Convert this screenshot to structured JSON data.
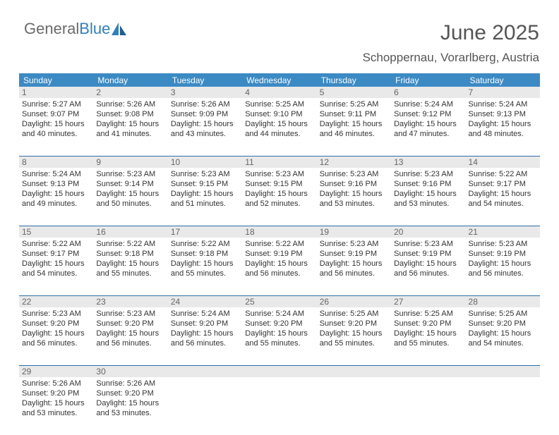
{
  "brand": {
    "first": "General",
    "second": "Blue"
  },
  "title": "June 2025",
  "location": "Schoppernau, Vorarlberg, Austria",
  "colors": {
    "header_bg": "#3b8ac4",
    "header_text": "#ffffff",
    "daynum_bg": "#e9e9e9",
    "daynum_text": "#666666",
    "row_border": "#2f6fa6",
    "body_text": "#333333",
    "title_text": "#555555",
    "logo_gray": "#6b6b6b",
    "logo_blue": "#2f7fbf"
  },
  "fonts": {
    "title_size": 30,
    "location_size": 17,
    "dayheader_size": 12,
    "daynum_size": 12,
    "info_size": 11
  },
  "day_headers": [
    "Sunday",
    "Monday",
    "Tuesday",
    "Wednesday",
    "Thursday",
    "Friday",
    "Saturday"
  ],
  "weeks": [
    [
      {
        "day": "1",
        "sunrise": "Sunrise: 5:27 AM",
        "sunset": "Sunset: 9:07 PM",
        "daylight1": "Daylight: 15 hours",
        "daylight2": "and 40 minutes."
      },
      {
        "day": "2",
        "sunrise": "Sunrise: 5:26 AM",
        "sunset": "Sunset: 9:08 PM",
        "daylight1": "Daylight: 15 hours",
        "daylight2": "and 41 minutes."
      },
      {
        "day": "3",
        "sunrise": "Sunrise: 5:26 AM",
        "sunset": "Sunset: 9:09 PM",
        "daylight1": "Daylight: 15 hours",
        "daylight2": "and 43 minutes."
      },
      {
        "day": "4",
        "sunrise": "Sunrise: 5:25 AM",
        "sunset": "Sunset: 9:10 PM",
        "daylight1": "Daylight: 15 hours",
        "daylight2": "and 44 minutes."
      },
      {
        "day": "5",
        "sunrise": "Sunrise: 5:25 AM",
        "sunset": "Sunset: 9:11 PM",
        "daylight1": "Daylight: 15 hours",
        "daylight2": "and 46 minutes."
      },
      {
        "day": "6",
        "sunrise": "Sunrise: 5:24 AM",
        "sunset": "Sunset: 9:12 PM",
        "daylight1": "Daylight: 15 hours",
        "daylight2": "and 47 minutes."
      },
      {
        "day": "7",
        "sunrise": "Sunrise: 5:24 AM",
        "sunset": "Sunset: 9:13 PM",
        "daylight1": "Daylight: 15 hours",
        "daylight2": "and 48 minutes."
      }
    ],
    [
      {
        "day": "8",
        "sunrise": "Sunrise: 5:24 AM",
        "sunset": "Sunset: 9:13 PM",
        "daylight1": "Daylight: 15 hours",
        "daylight2": "and 49 minutes."
      },
      {
        "day": "9",
        "sunrise": "Sunrise: 5:23 AM",
        "sunset": "Sunset: 9:14 PM",
        "daylight1": "Daylight: 15 hours",
        "daylight2": "and 50 minutes."
      },
      {
        "day": "10",
        "sunrise": "Sunrise: 5:23 AM",
        "sunset": "Sunset: 9:15 PM",
        "daylight1": "Daylight: 15 hours",
        "daylight2": "and 51 minutes."
      },
      {
        "day": "11",
        "sunrise": "Sunrise: 5:23 AM",
        "sunset": "Sunset: 9:15 PM",
        "daylight1": "Daylight: 15 hours",
        "daylight2": "and 52 minutes."
      },
      {
        "day": "12",
        "sunrise": "Sunrise: 5:23 AM",
        "sunset": "Sunset: 9:16 PM",
        "daylight1": "Daylight: 15 hours",
        "daylight2": "and 53 minutes."
      },
      {
        "day": "13",
        "sunrise": "Sunrise: 5:23 AM",
        "sunset": "Sunset: 9:16 PM",
        "daylight1": "Daylight: 15 hours",
        "daylight2": "and 53 minutes."
      },
      {
        "day": "14",
        "sunrise": "Sunrise: 5:22 AM",
        "sunset": "Sunset: 9:17 PM",
        "daylight1": "Daylight: 15 hours",
        "daylight2": "and 54 minutes."
      }
    ],
    [
      {
        "day": "15",
        "sunrise": "Sunrise: 5:22 AM",
        "sunset": "Sunset: 9:17 PM",
        "daylight1": "Daylight: 15 hours",
        "daylight2": "and 54 minutes."
      },
      {
        "day": "16",
        "sunrise": "Sunrise: 5:22 AM",
        "sunset": "Sunset: 9:18 PM",
        "daylight1": "Daylight: 15 hours",
        "daylight2": "and 55 minutes."
      },
      {
        "day": "17",
        "sunrise": "Sunrise: 5:22 AM",
        "sunset": "Sunset: 9:18 PM",
        "daylight1": "Daylight: 15 hours",
        "daylight2": "and 55 minutes."
      },
      {
        "day": "18",
        "sunrise": "Sunrise: 5:22 AM",
        "sunset": "Sunset: 9:19 PM",
        "daylight1": "Daylight: 15 hours",
        "daylight2": "and 56 minutes."
      },
      {
        "day": "19",
        "sunrise": "Sunrise: 5:23 AM",
        "sunset": "Sunset: 9:19 PM",
        "daylight1": "Daylight: 15 hours",
        "daylight2": "and 56 minutes."
      },
      {
        "day": "20",
        "sunrise": "Sunrise: 5:23 AM",
        "sunset": "Sunset: 9:19 PM",
        "daylight1": "Daylight: 15 hours",
        "daylight2": "and 56 minutes."
      },
      {
        "day": "21",
        "sunrise": "Sunrise: 5:23 AM",
        "sunset": "Sunset: 9:19 PM",
        "daylight1": "Daylight: 15 hours",
        "daylight2": "and 56 minutes."
      }
    ],
    [
      {
        "day": "22",
        "sunrise": "Sunrise: 5:23 AM",
        "sunset": "Sunset: 9:20 PM",
        "daylight1": "Daylight: 15 hours",
        "daylight2": "and 56 minutes."
      },
      {
        "day": "23",
        "sunrise": "Sunrise: 5:23 AM",
        "sunset": "Sunset: 9:20 PM",
        "daylight1": "Daylight: 15 hours",
        "daylight2": "and 56 minutes."
      },
      {
        "day": "24",
        "sunrise": "Sunrise: 5:24 AM",
        "sunset": "Sunset: 9:20 PM",
        "daylight1": "Daylight: 15 hours",
        "daylight2": "and 56 minutes."
      },
      {
        "day": "25",
        "sunrise": "Sunrise: 5:24 AM",
        "sunset": "Sunset: 9:20 PM",
        "daylight1": "Daylight: 15 hours",
        "daylight2": "and 55 minutes."
      },
      {
        "day": "26",
        "sunrise": "Sunrise: 5:25 AM",
        "sunset": "Sunset: 9:20 PM",
        "daylight1": "Daylight: 15 hours",
        "daylight2": "and 55 minutes."
      },
      {
        "day": "27",
        "sunrise": "Sunrise: 5:25 AM",
        "sunset": "Sunset: 9:20 PM",
        "daylight1": "Daylight: 15 hours",
        "daylight2": "and 55 minutes."
      },
      {
        "day": "28",
        "sunrise": "Sunrise: 5:25 AM",
        "sunset": "Sunset: 9:20 PM",
        "daylight1": "Daylight: 15 hours",
        "daylight2": "and 54 minutes."
      }
    ],
    [
      {
        "day": "29",
        "sunrise": "Sunrise: 5:26 AM",
        "sunset": "Sunset: 9:20 PM",
        "daylight1": "Daylight: 15 hours",
        "daylight2": "and 53 minutes."
      },
      {
        "day": "30",
        "sunrise": "Sunrise: 5:26 AM",
        "sunset": "Sunset: 9:20 PM",
        "daylight1": "Daylight: 15 hours",
        "daylight2": "and 53 minutes."
      },
      null,
      null,
      null,
      null,
      null
    ]
  ]
}
